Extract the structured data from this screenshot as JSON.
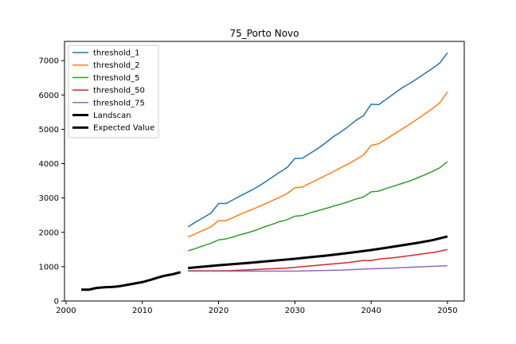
{
  "chart_data": {
    "type": "line",
    "title": "75_Porto Novo",
    "xlabel": "",
    "ylabel": "",
    "xlim": [
      1999.8,
      2052.2
    ],
    "ylim": [
      0,
      7560
    ],
    "xticks": [
      2000,
      2010,
      2020,
      2030,
      2040,
      2050
    ],
    "yticks": [
      0,
      1000,
      2000,
      3000,
      4000,
      5000,
      6000,
      7000
    ],
    "grid": false,
    "legend_position": "top-left",
    "series": [
      {
        "name": "threshold_1",
        "color": "#1f77b4",
        "width": 1.5,
        "x": [
          2016,
          2017,
          2018,
          2019,
          2020,
          2021,
          2022,
          2023,
          2024,
          2025,
          2026,
          2027,
          2028,
          2029,
          2030,
          2031,
          2032,
          2033,
          2034,
          2035,
          2036,
          2037,
          2038,
          2039,
          2040,
          2041,
          2042,
          2043,
          2044,
          2045,
          2046,
          2047,
          2048,
          2049,
          2050
        ],
        "y": [
          2160,
          2300,
          2430,
          2560,
          2840,
          2840,
          2960,
          3080,
          3190,
          3310,
          3450,
          3600,
          3750,
          3890,
          4150,
          4160,
          4300,
          4440,
          4600,
          4780,
          4920,
          5080,
          5260,
          5400,
          5730,
          5720,
          5880,
          6040,
          6200,
          6330,
          6470,
          6620,
          6770,
          6930,
          7230
        ]
      },
      {
        "name": "threshold_2",
        "color": "#ff7f0e",
        "width": 1.5,
        "x": [
          2016,
          2017,
          2018,
          2019,
          2020,
          2021,
          2022,
          2023,
          2024,
          2025,
          2026,
          2027,
          2028,
          2029,
          2030,
          2031,
          2032,
          2033,
          2034,
          2035,
          2036,
          2037,
          2038,
          2039,
          2040,
          2041,
          2042,
          2043,
          2044,
          2045,
          2046,
          2047,
          2048,
          2049,
          2050
        ],
        "y": [
          1860,
          1960,
          2060,
          2160,
          2340,
          2340,
          2440,
          2540,
          2630,
          2720,
          2820,
          2920,
          3020,
          3130,
          3300,
          3320,
          3430,
          3540,
          3650,
          3760,
          3880,
          3990,
          4120,
          4250,
          4530,
          4580,
          4720,
          4860,
          5000,
          5140,
          5290,
          5440,
          5600,
          5770,
          6090
        ]
      },
      {
        "name": "threshold_5",
        "color": "#2ca02c",
        "width": 1.5,
        "x": [
          2016,
          2017,
          2018,
          2019,
          2020,
          2021,
          2022,
          2023,
          2024,
          2025,
          2026,
          2027,
          2028,
          2029,
          2030,
          2031,
          2032,
          2033,
          2034,
          2035,
          2036,
          2037,
          2038,
          2039,
          2040,
          2041,
          2042,
          2043,
          2044,
          2045,
          2046,
          2047,
          2048,
          2049,
          2050
        ],
        "y": [
          1460,
          1530,
          1610,
          1680,
          1780,
          1810,
          1870,
          1940,
          2000,
          2070,
          2160,
          2230,
          2310,
          2370,
          2470,
          2490,
          2570,
          2630,
          2690,
          2760,
          2820,
          2890,
          2970,
          3030,
          3180,
          3200,
          3280,
          3350,
          3420,
          3490,
          3580,
          3670,
          3770,
          3880,
          4060
        ]
      },
      {
        "name": "threshold_50",
        "color": "#d62728",
        "width": 1.5,
        "x": [
          2016,
          2017,
          2018,
          2019,
          2020,
          2021,
          2022,
          2023,
          2024,
          2025,
          2026,
          2027,
          2028,
          2029,
          2030,
          2031,
          2032,
          2033,
          2034,
          2035,
          2036,
          2037,
          2038,
          2039,
          2040,
          2041,
          2042,
          2043,
          2044,
          2045,
          2046,
          2047,
          2048,
          2049,
          2050
        ],
        "y": [
          880,
          880,
          880,
          880,
          880,
          880,
          890,
          900,
          910,
          920,
          930,
          940,
          950,
          960,
          980,
          1000,
          1020,
          1040,
          1060,
          1080,
          1100,
          1120,
          1150,
          1180,
          1180,
          1220,
          1240,
          1260,
          1290,
          1320,
          1350,
          1380,
          1410,
          1450,
          1500
        ]
      },
      {
        "name": "threshold_75",
        "color": "#9467bd",
        "width": 1.5,
        "x": [
          2016,
          2018,
          2020,
          2022,
          2024,
          2026,
          2028,
          2030,
          2032,
          2034,
          2036,
          2038,
          2040,
          2042,
          2044,
          2046,
          2048,
          2050
        ],
        "y": [
          870,
          870,
          870,
          870,
          870,
          870,
          870,
          870,
          880,
          890,
          900,
          920,
          940,
          950,
          970,
          990,
          1010,
          1030
        ]
      },
      {
        "name": "Landscan",
        "color": "#000000",
        "width": 3,
        "x": [
          2002,
          2003,
          2004,
          2005,
          2006,
          2007,
          2008,
          2009,
          2010,
          2011,
          2012,
          2013,
          2014,
          2015
        ],
        "y": [
          330,
          330,
          380,
          400,
          410,
          430,
          470,
          510,
          550,
          610,
          680,
          740,
          780,
          840
        ]
      },
      {
        "name": "Expected Value",
        "color": "#000000",
        "width": 3,
        "x": [
          2016,
          2018,
          2020,
          2022,
          2024,
          2026,
          2028,
          2030,
          2032,
          2034,
          2036,
          2038,
          2040,
          2042,
          2044,
          2046,
          2048,
          2050
        ],
        "y": [
          960,
          1000,
          1040,
          1075,
          1110,
          1150,
          1190,
          1230,
          1275,
          1320,
          1370,
          1425,
          1485,
          1550,
          1620,
          1690,
          1770,
          1880
        ]
      }
    ]
  }
}
